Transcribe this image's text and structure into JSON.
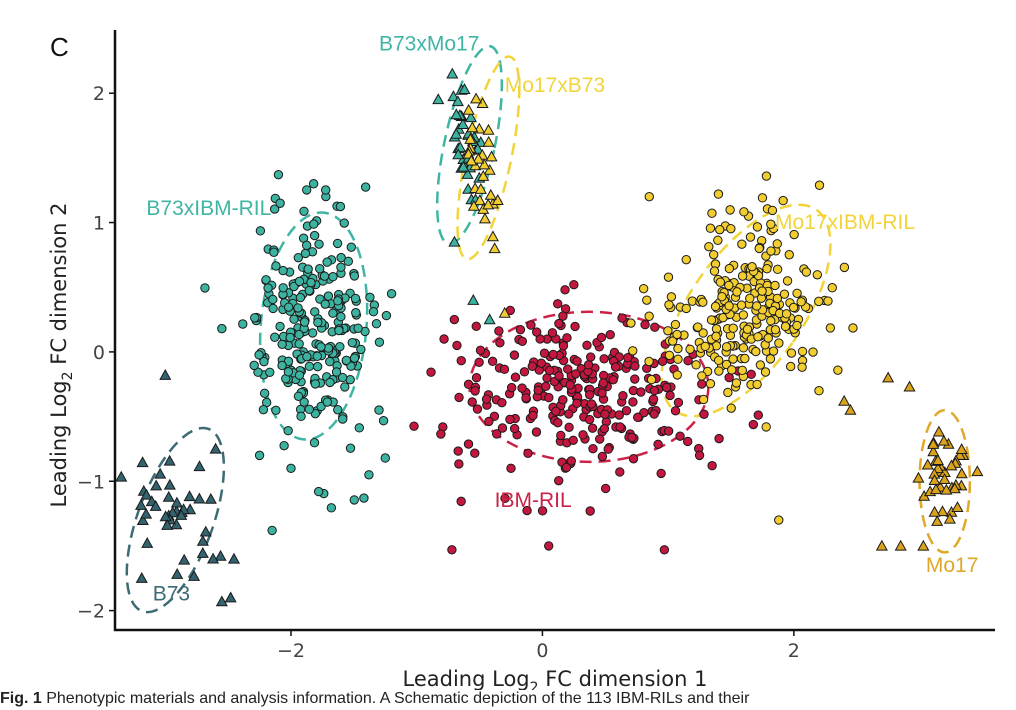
{
  "panel_label": "C",
  "caption": {
    "prefix": "Fig. 1",
    "text": "Phenotypic materials and analysis information. A Schematic depiction of the 113 IBM-RILs and their"
  },
  "chart_data": {
    "type": "scatter",
    "title": "",
    "xlabel": {
      "pre": "Leading Log",
      "sub": "2",
      "post": " FC dimension 1"
    },
    "ylabel": {
      "pre": "Leading Log",
      "sub": "2",
      "post": " FC dimension 2"
    },
    "xlim": [
      -3.4,
      3.6
    ],
    "ylim": [
      -2.15,
      2.45
    ],
    "xticks": [
      {
        "v": -2,
        "label": "−2"
      },
      {
        "v": 0,
        "label": "0"
      },
      {
        "v": 2,
        "label": "2"
      }
    ],
    "yticks": [
      {
        "v": -2,
        "label": "−2"
      },
      {
        "v": -1,
        "label": "−1"
      },
      {
        "v": 0,
        "label": "0"
      },
      {
        "v": 1,
        "label": "1"
      },
      {
        "v": 2,
        "label": "2"
      }
    ],
    "grid": false,
    "groups": [
      {
        "name": "B73",
        "label": "B73",
        "color": "#33636e",
        "marker": "triangle",
        "ellipse_color": "#3b6b75",
        "center": [
          -2.95,
          -1.25
        ],
        "spread": [
          0.17,
          0.28
        ],
        "rotation": 30,
        "count": 40,
        "ellipse": {
          "cx": -2.92,
          "cy": -1.3,
          "rx": 0.3,
          "ry": 0.75,
          "angle": 20
        },
        "label_pos": [
          -3.1,
          -1.92
        ]
      },
      {
        "name": "B73xMo17",
        "label": "B73xMo17",
        "color": "#3cb3a0",
        "marker": "triangle",
        "ellipse_color": "#3fb5a3",
        "center": [
          -0.6,
          1.55
        ],
        "spread": [
          0.06,
          0.3
        ],
        "rotation": 8,
        "count": 35,
        "ellipse": {
          "cx": -0.58,
          "cy": 1.6,
          "rx": 0.2,
          "ry": 0.78,
          "angle": 12
        },
        "label_pos": [
          -1.3,
          2.33
        ]
      },
      {
        "name": "Mo17xB73",
        "label": "Mo17xB73",
        "color": "#f2cd30",
        "marker": "triangle",
        "ellipse_color": "#f2d33a",
        "center": [
          -0.5,
          1.45
        ],
        "spread": [
          0.06,
          0.3
        ],
        "rotation": 8,
        "count": 30,
        "ellipse": {
          "cx": -0.43,
          "cy": 1.5,
          "rx": 0.18,
          "ry": 0.8,
          "angle": 12
        },
        "label_pos": [
          -0.3,
          2.01
        ]
      },
      {
        "name": "B73xIBM-RIL",
        "label": "B73xIBM-RIL",
        "color": "#3cb3a0",
        "marker": "circle",
        "ellipse_color": "#3fb5a3",
        "center": [
          -1.85,
          0.2
        ],
        "spread": [
          0.24,
          0.42
        ],
        "rotation": 0,
        "count": 260,
        "ellipse": {
          "cx": -1.82,
          "cy": 0.2,
          "rx": 0.42,
          "ry": 0.88,
          "angle": 5
        },
        "label_pos": [
          -3.15,
          1.06
        ]
      },
      {
        "name": "IBM-RIL",
        "label": "IBM-RIL",
        "color": "#c4173f",
        "marker": "circle",
        "ellipse_color": "#cc2248",
        "center": [
          0.3,
          -0.3
        ],
        "spread": [
          0.5,
          0.3
        ],
        "rotation": 0,
        "count": 280,
        "ellipse": {
          "cx": 0.37,
          "cy": -0.27,
          "rx": 0.95,
          "ry": 0.58,
          "angle": 0
        },
        "label_pos": [
          -0.38,
          -1.2
        ]
      },
      {
        "name": "Mo17xIBM-RIL",
        "label": "Mo17xIBM-RIL",
        "color": "#f2cd30",
        "marker": "circle",
        "ellipse_color": "#f2d33a",
        "center": [
          1.6,
          0.35
        ],
        "spread": [
          0.28,
          0.38
        ],
        "rotation": -32,
        "count": 260,
        "ellipse": {
          "cx": 1.62,
          "cy": 0.32,
          "rx": 0.45,
          "ry": 0.95,
          "angle": 35
        },
        "label_pos": [
          1.85,
          0.95
        ]
      },
      {
        "name": "Mo17",
        "label": "Mo17",
        "color": "#dba21c",
        "marker": "triangle",
        "ellipse_color": "#e0a82a",
        "center": [
          3.2,
          -0.95
        ],
        "spread": [
          0.09,
          0.2
        ],
        "rotation": 0,
        "count": 40,
        "ellipse": {
          "cx": 3.2,
          "cy": -1.0,
          "rx": 0.2,
          "ry": 0.55,
          "angle": 0
        },
        "label_pos": [
          3.05,
          -1.7
        ]
      }
    ],
    "points": [
      {
        "g": "B73",
        "x": -3.0,
        "y": -0.18
      },
      {
        "g": "B73",
        "x": -2.6,
        "y": -0.75
      },
      {
        "g": "B73",
        "x": -2.62,
        "y": -1.6
      },
      {
        "g": "B73",
        "x": -2.48,
        "y": -1.9
      },
      {
        "g": "B73",
        "x": -2.55,
        "y": -1.93
      },
      {
        "g": "B73xMo17",
        "x": -0.62,
        "y": 2.03
      },
      {
        "g": "B73xMo17",
        "x": -0.7,
        "y": 0.85
      },
      {
        "g": "B73xMo17",
        "x": -0.55,
        "y": 0.4
      },
      {
        "g": "B73xMo17",
        "x": -0.42,
        "y": 0.25
      },
      {
        "g": "Mo17xB73",
        "x": -0.38,
        "y": 0.8
      },
      {
        "g": "Mo17xB73",
        "x": -0.3,
        "y": 0.3
      },
      {
        "g": "B73xIBM-RIL",
        "x": -2.55,
        "y": 0.18
      },
      {
        "g": "B73xIBM-RIL",
        "x": -2.1,
        "y": 1.37
      },
      {
        "g": "B73xIBM-RIL",
        "x": -1.82,
        "y": 1.3
      },
      {
        "g": "B73xIBM-RIL",
        "x": -2.25,
        "y": -0.8
      },
      {
        "g": "B73xIBM-RIL",
        "x": -2.0,
        "y": -0.9
      },
      {
        "g": "B73xIBM-RIL",
        "x": -1.78,
        "y": -1.08
      },
      {
        "g": "B73xIBM-RIL",
        "x": -1.42,
        "y": -1.13
      },
      {
        "g": "B73xIBM-RIL",
        "x": -2.15,
        "y": -1.38
      },
      {
        "g": "B73xIBM-RIL",
        "x": -1.25,
        "y": -0.82
      },
      {
        "g": "B73xIBM-RIL",
        "x": -1.3,
        "y": -0.45
      },
      {
        "g": "B73xIBM-RIL",
        "x": -1.2,
        "y": 0.45
      },
      {
        "g": "B73xIBM-RIL",
        "x": -1.38,
        "y": -0.95
      },
      {
        "g": "IBM-RIL",
        "x": -0.72,
        "y": -1.53
      },
      {
        "g": "IBM-RIL",
        "x": 0.05,
        "y": -1.5
      },
      {
        "g": "IBM-RIL",
        "x": 0.97,
        "y": -1.53
      },
      {
        "g": "IBM-RIL",
        "x": 0.38,
        "y": -1.23
      },
      {
        "g": "IBM-RIL",
        "x": 0.25,
        "y": 0.52
      },
      {
        "g": "IBM-RIL",
        "x": 0.18,
        "y": 0.48
      },
      {
        "g": "IBM-RIL",
        "x": -0.68,
        "y": 0.05
      },
      {
        "g": "IBM-RIL",
        "x": 1.35,
        "y": -0.88
      },
      {
        "g": "IBM-RIL",
        "x": 1.25,
        "y": -0.8
      },
      {
        "g": "IBM-RIL",
        "x": -0.25,
        "y": -0.9
      },
      {
        "g": "Mo17xIBM-RIL",
        "x": 0.85,
        "y": 1.2
      },
      {
        "g": "Mo17xIBM-RIL",
        "x": 1.4,
        "y": 1.22
      },
      {
        "g": "Mo17xIBM-RIL",
        "x": 0.83,
        "y": 0.4
      },
      {
        "g": "Mo17xIBM-RIL",
        "x": 1.88,
        "y": -1.3
      },
      {
        "g": "Mo17xIBM-RIL",
        "x": 1.78,
        "y": -0.58
      },
      {
        "g": "Mo17xIBM-RIL",
        "x": 2.2,
        "y": -0.3
      },
      {
        "g": "Mo17",
        "x": 2.75,
        "y": -0.2
      },
      {
        "g": "Mo17",
        "x": 2.92,
        "y": -0.27
      },
      {
        "g": "Mo17",
        "x": 2.4,
        "y": -0.38
      },
      {
        "g": "Mo17",
        "x": 2.45,
        "y": -0.45
      },
      {
        "g": "Mo17",
        "x": 2.7,
        "y": -1.5
      },
      {
        "g": "Mo17",
        "x": 2.85,
        "y": -1.5
      },
      {
        "g": "Mo17",
        "x": 3.03,
        "y": -1.5
      }
    ]
  }
}
